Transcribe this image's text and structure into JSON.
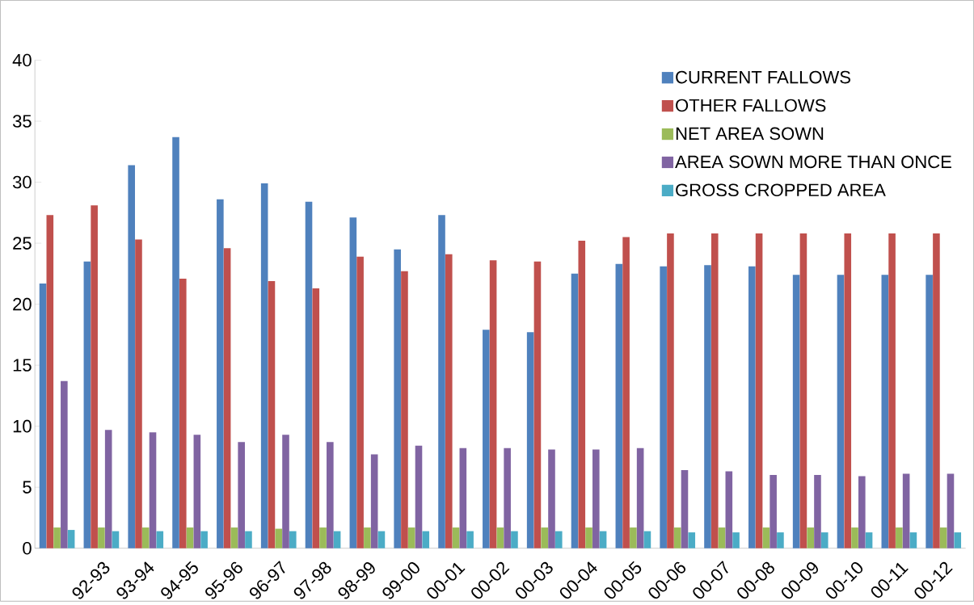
{
  "chart_data": {
    "type": "bar",
    "categories": [
      null,
      "92-93",
      "93-94",
      "94-95",
      "95-96",
      "96-97",
      "97-98",
      "98-99",
      "99-00",
      "00-01",
      "00-02",
      "00-03",
      "00-04",
      "00-05",
      "00-06",
      "00-07",
      "00-08",
      "00-09",
      "00-10",
      "00-11",
      "00-12"
    ],
    "series": [
      {
        "name": "CURRENT FALLOWS",
        "color": "#4f81bd",
        "values": [
          21.7,
          23.5,
          31.4,
          33.7,
          28.6,
          29.9,
          28.4,
          27.1,
          24.5,
          27.3,
          17.9,
          17.7,
          22.5,
          23.3,
          23.1,
          23.2,
          23.1,
          22.4,
          22.4,
          22.4,
          22.4
        ]
      },
      {
        "name": "OTHER FALLOWS",
        "color": "#c0504d",
        "values": [
          27.3,
          28.1,
          25.3,
          22.1,
          24.6,
          21.9,
          21.3,
          23.9,
          22.7,
          24.1,
          23.6,
          23.5,
          25.2,
          25.5,
          25.8,
          25.8,
          25.8,
          25.8,
          25.8,
          25.8,
          25.8
        ]
      },
      {
        "name": "NET AREA SOWN",
        "color": "#9bbb59",
        "values": [
          1.7,
          1.7,
          1.7,
          1.7,
          1.7,
          1.6,
          1.7,
          1.7,
          1.7,
          1.7,
          1.7,
          1.7,
          1.7,
          1.7,
          1.7,
          1.7,
          1.7,
          1.7,
          1.7,
          1.7,
          1.7
        ]
      },
      {
        "name": "AREA SOWN MORE THAN ONCE",
        "color": "#8064a2",
        "values": [
          13.7,
          9.7,
          9.5,
          9.3,
          8.7,
          9.3,
          8.7,
          7.7,
          8.4,
          8.2,
          8.2,
          8.1,
          8.1,
          8.2,
          6.4,
          6.3,
          6.0,
          6.0,
          5.9,
          6.1,
          6.1
        ]
      },
      {
        "name": "GROSS CROPPED AREA",
        "color": "#4bacc6",
        "values": [
          1.5,
          1.4,
          1.4,
          1.4,
          1.4,
          1.4,
          1.4,
          1.4,
          1.4,
          1.4,
          1.4,
          1.4,
          1.4,
          1.4,
          1.3,
          1.3,
          1.3,
          1.3,
          1.3,
          1.3,
          1.3
        ]
      }
    ],
    "ylim": [
      0,
      40
    ],
    "yticks": [
      0,
      5,
      10,
      15,
      20,
      25,
      30,
      35,
      40
    ],
    "grid": false,
    "legend": "top right"
  }
}
